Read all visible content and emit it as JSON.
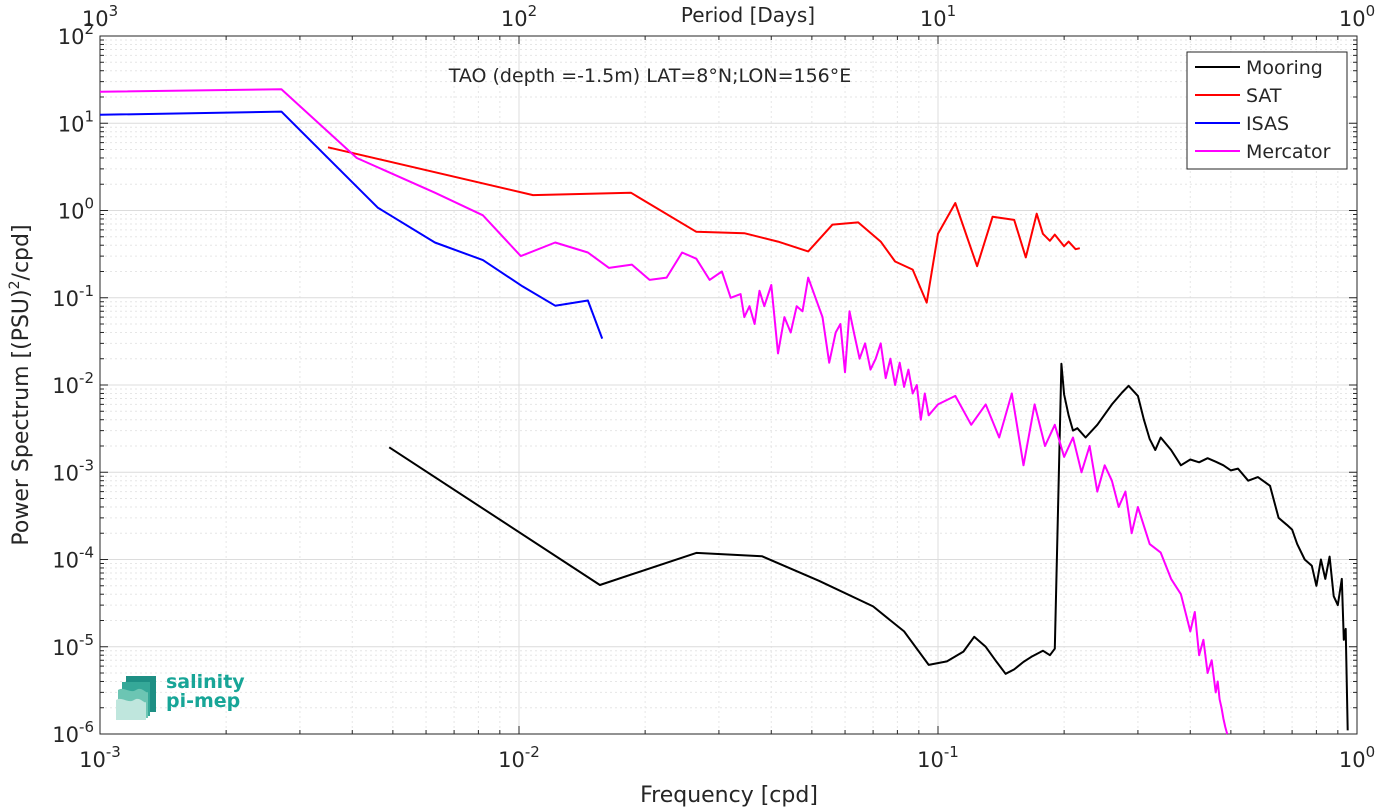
{
  "chart_data": {
    "type": "line",
    "title": "TAO (depth =-1.5m) LAT=8°N;LON=156°E",
    "xlabel": "Frequency [cpd]",
    "ylabel": "Power Spectrum [(PSU)²/cpd]",
    "ylabel_main": "Power Spectrum [(PSU)",
    "ylabel_sup": "2",
    "ylabel_tail": "/cpd]",
    "top_xlabel": "Period [Days]",
    "x_scale": "log",
    "y_scale": "log",
    "xlim": [
      0.001,
      1
    ],
    "ylim": [
      1e-06,
      100
    ],
    "grid": true,
    "legend_position": "top-right",
    "x_ticks": [
      {
        "value": 0.001,
        "base": "10",
        "exp": "-3"
      },
      {
        "value": 0.01,
        "base": "10",
        "exp": "-2"
      },
      {
        "value": 0.1,
        "base": "10",
        "exp": "-1"
      },
      {
        "value": 1,
        "base": "10",
        "exp": "0"
      }
    ],
    "top_ticks": [
      {
        "value": 0.001,
        "base": "10",
        "exp": "3"
      },
      {
        "value": 0.01,
        "base": "10",
        "exp": "2"
      },
      {
        "value": 0.1,
        "base": "10",
        "exp": "1"
      },
      {
        "value": 1,
        "base": "10",
        "exp": "0"
      }
    ],
    "y_ticks": [
      {
        "value": 1e-06,
        "base": "10",
        "exp": "-6"
      },
      {
        "value": 1e-05,
        "base": "10",
        "exp": "-5"
      },
      {
        "value": 0.0001,
        "base": "10",
        "exp": "-4"
      },
      {
        "value": 0.001,
        "base": "10",
        "exp": "-3"
      },
      {
        "value": 0.01,
        "base": "10",
        "exp": "-2"
      },
      {
        "value": 0.1,
        "base": "10",
        "exp": "-1"
      },
      {
        "value": 1,
        "base": "10",
        "exp": "0"
      },
      {
        "value": 10,
        "base": "10",
        "exp": "1"
      },
      {
        "value": 100,
        "base": "10",
        "exp": "2"
      }
    ],
    "series": [
      {
        "name": "Mooring",
        "color": "#000000",
        "x": [
          0.0049,
          0.0156,
          0.0265,
          0.038,
          0.052,
          0.07,
          0.083,
          0.095,
          0.105,
          0.115,
          0.122,
          0.13,
          0.138,
          0.145,
          0.152,
          0.16,
          0.168,
          0.178,
          0.185,
          0.19,
          0.197,
          0.2,
          0.205,
          0.21,
          0.215,
          0.225,
          0.24,
          0.26,
          0.275,
          0.285,
          0.3,
          0.31,
          0.32,
          0.33,
          0.34,
          0.36,
          0.38,
          0.4,
          0.42,
          0.44,
          0.46,
          0.48,
          0.5,
          0.52,
          0.55,
          0.58,
          0.62,
          0.65,
          0.68,
          0.7,
          0.72,
          0.75,
          0.78,
          0.8,
          0.82,
          0.84,
          0.86,
          0.88,
          0.9,
          0.92,
          0.93,
          0.94,
          0.95
        ],
        "y": [
          0.00193,
          5.1e-05,
          0.000119,
          0.000109,
          5.7e-05,
          2.9e-05,
          1.5e-05,
          6.2e-06,
          6.8e-06,
          8.8e-06,
          1.3e-05,
          1e-05,
          6.7e-06,
          4.9e-06,
          5.5e-06,
          6.7e-06,
          7.8e-06,
          9e-06,
          8e-06,
          9.5e-06,
          0.0175,
          0.0078,
          0.0045,
          0.003,
          0.0032,
          0.0025,
          0.0035,
          0.006,
          0.0082,
          0.0098,
          0.0075,
          0.004,
          0.0024,
          0.0018,
          0.0025,
          0.0018,
          0.0012,
          0.0014,
          0.0013,
          0.00145,
          0.00132,
          0.0012,
          0.00105,
          0.0011,
          0.0008,
          0.00088,
          0.0007,
          0.0003,
          0.00025,
          0.00022,
          0.00015,
          0.0001,
          8.5e-05,
          5e-05,
          0.0001,
          6e-05,
          0.000108,
          3.8e-05,
          3e-05,
          6e-05,
          1.2e-05,
          1.6e-05,
          1.1e-06
        ]
      },
      {
        "name": "SAT",
        "color": "#ff0000",
        "x": [
          0.0035,
          0.0108,
          0.0185,
          0.0265,
          0.0345,
          0.0415,
          0.049,
          0.056,
          0.0645,
          0.073,
          0.079,
          0.087,
          0.094,
          0.1,
          0.11,
          0.124,
          0.135,
          0.152,
          0.162,
          0.172,
          0.178,
          0.185,
          0.19,
          0.2,
          0.205,
          0.213,
          0.218
        ],
        "y": [
          5.3,
          1.5,
          1.6,
          0.57,
          0.55,
          0.44,
          0.34,
          0.69,
          0.73,
          0.44,
          0.26,
          0.21,
          0.088,
          0.54,
          1.22,
          0.23,
          0.85,
          0.78,
          0.29,
          0.92,
          0.54,
          0.45,
          0.53,
          0.39,
          0.44,
          0.36,
          0.37
        ]
      },
      {
        "name": "ISAS",
        "color": "#0000ff",
        "x": [
          0.001,
          0.00271,
          0.0046,
          0.0063,
          0.0082,
          0.0102,
          0.0122,
          0.0146,
          0.0158
        ],
        "y": [
          12.5,
          13.6,
          1.08,
          0.43,
          0.27,
          0.135,
          0.081,
          0.093,
          0.034
        ]
      },
      {
        "name": "Mercator",
        "color": "#ff00ff",
        "x": [
          0.001,
          0.00271,
          0.0041,
          0.0063,
          0.0082,
          0.0101,
          0.0122,
          0.0146,
          0.0164,
          0.0186,
          0.0205,
          0.0225,
          0.0245,
          0.0265,
          0.0285,
          0.0305,
          0.032,
          0.0338,
          0.0345,
          0.0355,
          0.0365,
          0.0375,
          0.0385,
          0.04,
          0.0415,
          0.043,
          0.0445,
          0.046,
          0.0475,
          0.049,
          0.051,
          0.053,
          0.055,
          0.057,
          0.0585,
          0.06,
          0.0615,
          0.063,
          0.065,
          0.067,
          0.069,
          0.071,
          0.073,
          0.075,
          0.077,
          0.079,
          0.081,
          0.083,
          0.085,
          0.087,
          0.089,
          0.091,
          0.093,
          0.095,
          0.1,
          0.11,
          0.12,
          0.13,
          0.14,
          0.15,
          0.16,
          0.17,
          0.18,
          0.19,
          0.2,
          0.21,
          0.22,
          0.23,
          0.24,
          0.25,
          0.26,
          0.27,
          0.28,
          0.29,
          0.3,
          0.32,
          0.34,
          0.36,
          0.38,
          0.4,
          0.41,
          0.42,
          0.43,
          0.44,
          0.45,
          0.46,
          0.465,
          0.47,
          0.475,
          0.48,
          0.485,
          0.49
        ],
        "y": [
          23,
          24.5,
          4.0,
          1.6,
          0.88,
          0.3,
          0.43,
          0.33,
          0.22,
          0.24,
          0.16,
          0.17,
          0.33,
          0.28,
          0.16,
          0.2,
          0.1,
          0.11,
          0.06,
          0.08,
          0.05,
          0.12,
          0.08,
          0.14,
          0.023,
          0.06,
          0.04,
          0.08,
          0.07,
          0.17,
          0.1,
          0.06,
          0.018,
          0.04,
          0.05,
          0.014,
          0.07,
          0.04,
          0.02,
          0.03,
          0.015,
          0.02,
          0.03,
          0.012,
          0.02,
          0.01,
          0.018,
          0.0095,
          0.015,
          0.008,
          0.01,
          0.004,
          0.008,
          0.0045,
          0.006,
          0.0075,
          0.0035,
          0.006,
          0.0025,
          0.008,
          0.0012,
          0.006,
          0.002,
          0.0035,
          0.0015,
          0.0025,
          0.001,
          0.002,
          0.0006,
          0.0012,
          0.0008,
          0.0004,
          0.0006,
          0.0002,
          0.0004,
          0.00015,
          0.00012,
          6e-05,
          4e-05,
          1.5e-05,
          2.5e-05,
          8e-06,
          1.2e-05,
          5e-06,
          7e-06,
          3e-06,
          4e-06,
          2.5e-06,
          2e-06,
          1.5e-06,
          1.2e-06,
          1e-06
        ]
      }
    ]
  }
}
